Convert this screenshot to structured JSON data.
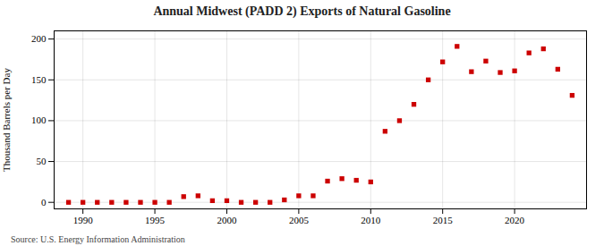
{
  "chart_data": {
    "type": "scatter",
    "title": "Annual Midwest (PADD 2) Exports of Natural Gasoline",
    "ylabel": "Thousand Barrels per Day",
    "source": "Source: U.S. Energy Information Administration",
    "x": [
      1989,
      1990,
      1991,
      1992,
      1993,
      1994,
      1995,
      1996,
      1997,
      1998,
      1999,
      2000,
      2001,
      2002,
      2003,
      2004,
      2005,
      2006,
      2007,
      2008,
      2009,
      2010,
      2011,
      2012,
      2013,
      2014,
      2015,
      2016,
      2017,
      2018,
      2019,
      2020,
      2021,
      2022,
      2023,
      2024
    ],
    "values": [
      0,
      0,
      0,
      0,
      0,
      0,
      0,
      0,
      7,
      8,
      2,
      2,
      0,
      0,
      0,
      3,
      8,
      8,
      26,
      29,
      27,
      25,
      87,
      100,
      120,
      150,
      172,
      191,
      160,
      173,
      159,
      161,
      183,
      188,
      163,
      131
    ],
    "color": "#cc0000",
    "marker": "square",
    "xlim": [
      1988,
      2025
    ],
    "ylim": [
      -8,
      210
    ],
    "xticks": [
      1990,
      1995,
      2000,
      2005,
      2010,
      2015,
      2020
    ],
    "yticks": [
      0,
      50,
      100,
      150,
      200
    ],
    "grid": true
  }
}
